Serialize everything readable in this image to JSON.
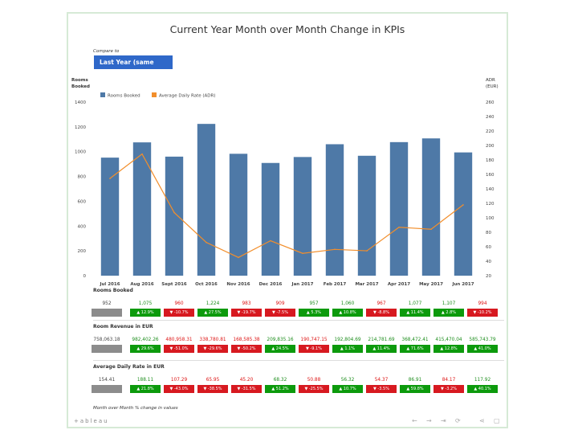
{
  "title": "Current Year Month over Month Change in KPIs",
  "compare": {
    "label": "Compare to",
    "value": "Last Year (same date)"
  },
  "colors": {
    "bar": "#4e79a7",
    "line": "#f28e2b",
    "up": "#0c9a0c",
    "down": "#d71920",
    "base": "#8c8c8c"
  },
  "chart_data": {
    "type": "bar",
    "categories": [
      "Jul 2016",
      "Aug 2016",
      "Sept 2016",
      "Oct 2016",
      "Nov 2016",
      "Dec 2016",
      "Jan 2017",
      "Feb 2017",
      "Mar 2017",
      "Apr 2017",
      "May 2017",
      "Jun 2017"
    ],
    "series": [
      {
        "name": "Rooms Booked",
        "type": "bar",
        "axis": "left",
        "values": [
          952,
          1075,
          960,
          1224,
          983,
          909,
          957,
          1060,
          967,
          1077,
          1107,
          994
        ]
      },
      {
        "name": "Average Daily Rate (ADR)",
        "type": "line",
        "axis": "right",
        "values": [
          154.41,
          188.11,
          107.29,
          65.95,
          45.2,
          68.32,
          50.88,
          56.32,
          54.37,
          86.91,
          84.17,
          117.92
        ]
      }
    ],
    "ylabel_left": [
      "Rooms",
      "Booked"
    ],
    "ylabel_right": [
      "ADR",
      "(EUR)"
    ],
    "ylim_left": [
      0,
      1400
    ],
    "ylim_right": [
      20,
      260
    ],
    "yticks_left": [
      "0",
      "200",
      "400",
      "600",
      "800",
      "1000",
      "1200",
      "1400"
    ],
    "yticks_right": [
      "20",
      "40",
      "60",
      "80",
      "100",
      "120",
      "140",
      "160",
      "180",
      "200",
      "220",
      "240",
      "260"
    ],
    "legend": "top-left",
    "grid": false
  },
  "kpis": [
    {
      "label": "Rooms Booked",
      "values": [
        "952",
        "1,075",
        "960",
        "1,224",
        "983",
        "909",
        "957",
        "1,060",
        "967",
        "1,077",
        "1,107",
        "994"
      ],
      "changes": [
        "",
        "▲ 12.9%",
        "▼ -10.7%",
        "▲ 27.5%",
        "▼ -19.7%",
        "▼ -7.5%",
        "▲ 5.3%",
        "▲ 10.8%",
        "▼ -8.8%",
        "▲ 11.4%",
        "▲ 2.8%",
        "▼ -10.2%"
      ],
      "dirs": [
        "base",
        "up",
        "down",
        "up",
        "down",
        "down",
        "up",
        "up",
        "down",
        "up",
        "up",
        "down"
      ]
    },
    {
      "label": "Room Revenue in EUR",
      "values": [
        "758,063.18",
        "982,402.26",
        "480,958.31",
        "338,780.81",
        "168,585.38",
        "209,835.16",
        "190,747.15",
        "192,804.69",
        "214,781.69",
        "368,472.41",
        "415,470.04",
        "585,743.79"
      ],
      "changes": [
        "",
        "▲ 29.6%",
        "▼ -51.0%",
        "▼ -29.6%",
        "▼ -50.2%",
        "▲ 24.5%",
        "▼ -9.1%",
        "▲ 1.1%",
        "▲ 11.4%",
        "▲ 71.6%",
        "▲ 12.8%",
        "▲ 41.0%"
      ],
      "dirs": [
        "base",
        "up",
        "down",
        "down",
        "down",
        "up",
        "down",
        "up",
        "up",
        "up",
        "up",
        "up"
      ]
    },
    {
      "label": "Average Daily Rate in EUR",
      "values": [
        "154.41",
        "188.11",
        "107.29",
        "65.95",
        "45.20",
        "68.32",
        "50.88",
        "56.32",
        "54.37",
        "86.91",
        "84.17",
        "117.92"
      ],
      "changes": [
        "",
        "▲ 21.8%",
        "▼ -43.0%",
        "▼ -38.5%",
        "▼ -31.5%",
        "▲ 51.2%",
        "▼ -25.5%",
        "▲ 10.7%",
        "▼ -3.5%",
        "▲ 59.8%",
        "▼ -3.2%",
        "▲ 40.1%"
      ],
      "dirs": [
        "base",
        "up",
        "down",
        "down",
        "down",
        "up",
        "down",
        "up",
        "down",
        "up",
        "down",
        "up"
      ]
    }
  ],
  "footnote": "Month over Month % change in values",
  "toolbar": {
    "logo": "+ableau"
  }
}
